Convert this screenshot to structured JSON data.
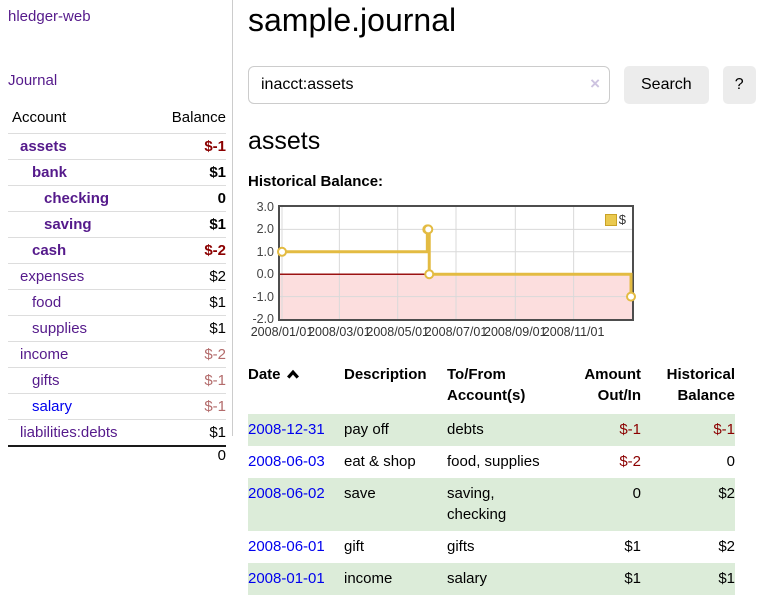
{
  "app": {
    "brand": "hledger-web"
  },
  "colors": {
    "link_visited": "#551a8b",
    "link_new": "#0000ee",
    "negative_strong": "#8b0000",
    "negative_muted": "#b36b6b",
    "row_stripe_green": "#dcecd9",
    "chart_line_gold": "#e3bb42",
    "chart_negative_pink": "#fcdede",
    "chart_zero_line_red": "#9b1212"
  },
  "sidebar": {
    "nav": {
      "journal": "Journal"
    },
    "accounts_table": {
      "headers": {
        "account": "Account",
        "balance": "Balance"
      },
      "rows": [
        {
          "account": "assets",
          "balance": "$-1",
          "indent": 1,
          "bold": true,
          "link": "visited",
          "balance_class": "neg"
        },
        {
          "account": "bank",
          "balance": "$1",
          "indent": 2,
          "bold": true,
          "link": "visited",
          "balance_class": ""
        },
        {
          "account": "checking",
          "balance": "0",
          "indent": 3,
          "bold": true,
          "link": "visited",
          "balance_class": ""
        },
        {
          "account": "saving",
          "balance": "$1",
          "indent": 3,
          "bold": true,
          "link": "visited",
          "balance_class": ""
        },
        {
          "account": "cash",
          "balance": "$-2",
          "indent": 2,
          "bold": true,
          "link": "visited",
          "balance_class": "neg"
        },
        {
          "account": "expenses",
          "balance": "$2",
          "indent": 1,
          "bold": false,
          "link": "visited",
          "balance_class": ""
        },
        {
          "account": "food",
          "balance": "$1",
          "indent": 2,
          "bold": false,
          "link": "visited",
          "balance_class": ""
        },
        {
          "account": "supplies",
          "balance": "$1",
          "indent": 2,
          "bold": false,
          "link": "visited",
          "balance_class": ""
        },
        {
          "account": "income",
          "balance": "$-2",
          "indent": 1,
          "bold": false,
          "link": "visited",
          "balance_class": "negm"
        },
        {
          "account": "gifts",
          "balance": "$-1",
          "indent": 2,
          "bold": false,
          "link": "visited",
          "balance_class": "negm"
        },
        {
          "account": "salary",
          "balance": "$-1",
          "indent": 2,
          "bold": false,
          "link": "new",
          "balance_class": "negm"
        },
        {
          "account": "liabilities:debts",
          "balance": "$1",
          "indent": 1,
          "bold": false,
          "link": "visited",
          "balance_class": ""
        }
      ],
      "total": "0"
    }
  },
  "main": {
    "title": "sample.journal",
    "search": {
      "value": "inacct:assets",
      "clear_icon": "×",
      "search_button": "Search",
      "help_button": "?"
    },
    "account_heading": "assets",
    "chart_heading": "Historical Balance:"
  },
  "chart_data": {
    "type": "line",
    "step": "after",
    "title": "Historical Balance:",
    "series": [
      {
        "name": "$",
        "points": [
          {
            "date": "2008-01-01",
            "value": 1
          },
          {
            "date": "2008-06-01",
            "value": 2
          },
          {
            "date": "2008-06-02",
            "value": 2
          },
          {
            "date": "2008-06-03",
            "value": 0
          },
          {
            "date": "2008-12-31",
            "value": -1
          }
        ]
      }
    ],
    "ylim": [
      -2,
      3
    ],
    "yticks": [
      "3.0",
      "2.0",
      "1.0",
      "0.0",
      "-1.0",
      "-2.0"
    ],
    "xticks": [
      "2008/01/01",
      "2008/03/01",
      "2008/05/01",
      "2008/07/01",
      "2008/09/01",
      "2008/11/01"
    ],
    "x_start": "2008-01-01",
    "x_end": "2008-12-31",
    "legend": [
      {
        "label": "$"
      }
    ],
    "legend_position": "top-right",
    "grid": true,
    "negative_region_shaded": true
  },
  "register": {
    "headers": {
      "date": "Date",
      "description": "Description",
      "accounts": "To/From Account(s)",
      "amount": "Amount Out/In",
      "balance": "Historical Balance"
    },
    "sort": {
      "column": "date",
      "direction": "ascending"
    },
    "rows": [
      {
        "date": "2008-12-31",
        "description": "pay off",
        "accounts": [
          "debts"
        ],
        "amount": "$-1",
        "amount_class": "neg",
        "balance": "$-1",
        "balance_class": "neg"
      },
      {
        "date": "2008-06-03",
        "description": "eat & shop",
        "accounts": [
          "food",
          "supplies"
        ],
        "amount": "$-2",
        "amount_class": "neg",
        "balance": "0",
        "balance_class": ""
      },
      {
        "date": "2008-06-02",
        "description": "save",
        "accounts": [
          "saving",
          "checking"
        ],
        "amount": "0",
        "amount_class": "",
        "balance": "$2",
        "balance_class": ""
      },
      {
        "date": "2008-06-01",
        "description": "gift",
        "accounts": [
          "gifts"
        ],
        "amount": "$1",
        "amount_class": "",
        "balance": "$2",
        "balance_class": ""
      },
      {
        "date": "2008-01-01",
        "description": "income",
        "accounts": [
          "salary"
        ],
        "amount": "$1",
        "amount_class": "",
        "balance": "$1",
        "balance_class": ""
      }
    ]
  }
}
